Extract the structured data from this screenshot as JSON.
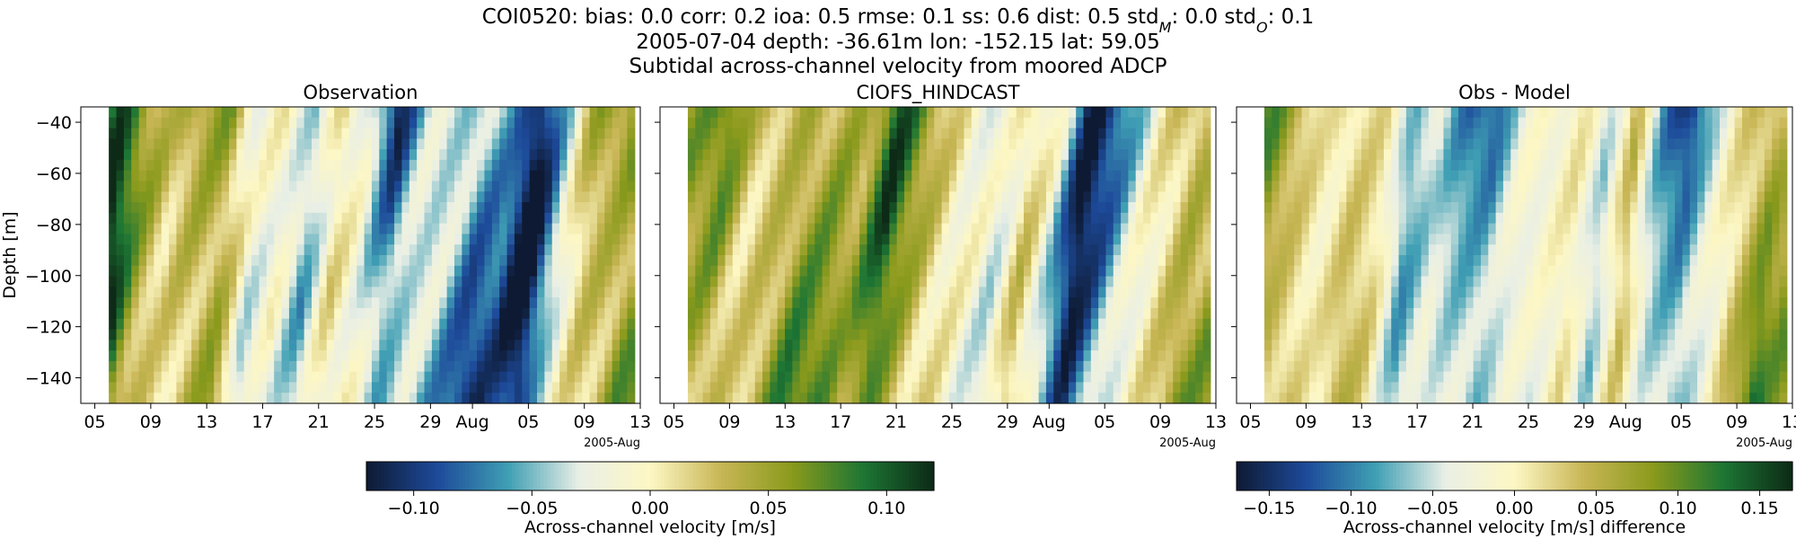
{
  "header": {
    "station": "COI0520",
    "stats": [
      {
        "label": "bias",
        "value": "0.0"
      },
      {
        "label": "corr",
        "value": "0.2"
      },
      {
        "label": "ioa",
        "value": "0.5"
      },
      {
        "label": "rmse",
        "value": "0.1"
      },
      {
        "label": "ss",
        "value": "0.6"
      },
      {
        "label": "dist",
        "value": "0.5"
      },
      {
        "label": "std",
        "sub": "M",
        "value": "0.0"
      },
      {
        "label": "std",
        "sub": "O",
        "value": "0.1"
      }
    ],
    "line2": "2005-07-04 depth: -36.61m lon: -152.15 lat: 59.05",
    "line3": "Subtidal across-channel velocity from moored ADCP"
  },
  "colors": {
    "colormap": [
      "#0e1a33",
      "#1d4a9a",
      "#3f9fb4",
      "#e9efe6",
      "#fdf7c4",
      "#c8b655",
      "#8a9a1c",
      "#1d7634",
      "#0d2a16"
    ]
  },
  "chart_data": [
    {
      "type": "heatmap",
      "title": "Observation",
      "ylabel": "Depth [m]",
      "ylim": [
        -150,
        -34
      ],
      "yticks": [
        -40,
        -60,
        -80,
        -100,
        -120,
        -140
      ],
      "xticks": [
        "05",
        "09",
        "13",
        "17",
        "21",
        "25",
        "29",
        "Aug",
        "05",
        "09",
        "13"
      ],
      "xoffset_label": "2005-Aug",
      "x_range": [
        "2005-07-06",
        "2005-08-12"
      ],
      "depth_bins": 28,
      "time_steps": 70,
      "value_range": [
        -0.12,
        0.12
      ],
      "column_profile": [
        {
          "date": "2005-07-06",
          "value": 0.12
        },
        {
          "date": "2005-07-08",
          "value": 0.05
        },
        {
          "date": "2005-07-10",
          "value": 0.02
        },
        {
          "date": "2005-07-12",
          "value": 0.06
        },
        {
          "date": "2005-07-14",
          "value": 0.09
        },
        {
          "date": "2005-07-16",
          "value": -0.04
        },
        {
          "date": "2005-07-18",
          "value": -0.01
        },
        {
          "date": "2005-07-20",
          "value": -0.05
        },
        {
          "date": "2005-07-22",
          "value": 0.01
        },
        {
          "date": "2005-07-24",
          "value": -0.02
        },
        {
          "date": "2005-07-26",
          "value": -0.12
        },
        {
          "date": "2005-07-28",
          "value": -0.06
        },
        {
          "date": "2005-07-30",
          "value": -0.07
        },
        {
          "date": "2005-08-01",
          "value": -0.1
        },
        {
          "date": "2005-08-03",
          "value": -0.08
        },
        {
          "date": "2005-08-05",
          "value": -0.13
        },
        {
          "date": "2005-08-07",
          "value": -0.04
        },
        {
          "date": "2005-08-09",
          "value": 0.04
        },
        {
          "date": "2005-08-11",
          "value": 0.07
        },
        {
          "date": "2005-08-12",
          "value": 0.1
        }
      ],
      "colorbar": {
        "label": "Across-channel velocity [m/s]",
        "range": [
          -0.12,
          0.12
        ],
        "ticks": [
          "−0.10",
          "−0.05",
          "0.00",
          "0.05",
          "0.10"
        ],
        "tick_values": [
          -0.1,
          -0.05,
          0.0,
          0.05,
          0.1
        ]
      }
    },
    {
      "type": "heatmap",
      "title": "CIOFS_HINDCAST",
      "ylim": [
        -150,
        -34
      ],
      "xticks": [
        "05",
        "09",
        "13",
        "17",
        "21",
        "25",
        "29",
        "Aug",
        "05",
        "09",
        "13"
      ],
      "xoffset_label": "2005-Aug",
      "x_range": [
        "2005-07-06",
        "2005-08-12"
      ],
      "depth_bins": 28,
      "time_steps": 70,
      "value_range": [
        -0.12,
        0.12
      ],
      "column_profile": [
        {
          "date": "2005-07-06",
          "value": 0.05
        },
        {
          "date": "2005-07-08",
          "value": 0.08
        },
        {
          "date": "2005-07-10",
          "value": 0.03
        },
        {
          "date": "2005-07-12",
          "value": 0.06
        },
        {
          "date": "2005-07-14",
          "value": 0.09
        },
        {
          "date": "2005-07-16",
          "value": 0.07
        },
        {
          "date": "2005-07-18",
          "value": 0.04
        },
        {
          "date": "2005-07-20",
          "value": 0.1
        },
        {
          "date": "2005-07-22",
          "value": 0.06
        },
        {
          "date": "2005-07-24",
          "value": 0.02
        },
        {
          "date": "2005-07-26",
          "value": -0.02
        },
        {
          "date": "2005-07-28",
          "value": -0.05
        },
        {
          "date": "2005-07-30",
          "value": 0.03
        },
        {
          "date": "2005-08-01",
          "value": -0.03
        },
        {
          "date": "2005-08-03",
          "value": -0.12
        },
        {
          "date": "2005-08-05",
          "value": -0.08
        },
        {
          "date": "2005-08-07",
          "value": -0.03
        },
        {
          "date": "2005-08-09",
          "value": 0.02
        },
        {
          "date": "2005-08-11",
          "value": 0.08
        },
        {
          "date": "2005-08-12",
          "value": 0.06
        }
      ]
    },
    {
      "type": "heatmap",
      "title": "Obs - Model",
      "ylim": [
        -150,
        -34
      ],
      "xticks": [
        "05",
        "09",
        "13",
        "17",
        "21",
        "25",
        "29",
        "Aug",
        "05",
        "09",
        "13"
      ],
      "xoffset_label": "2005-Aug",
      "x_range": [
        "2005-07-06",
        "2005-08-12"
      ],
      "depth_bins": 28,
      "time_steps": 70,
      "value_range": [
        -0.17,
        0.17
      ],
      "column_profile": [
        {
          "date": "2005-07-06",
          "value": 0.1
        },
        {
          "date": "2005-07-08",
          "value": 0.06
        },
        {
          "date": "2005-07-10",
          "value": 0.0
        },
        {
          "date": "2005-07-12",
          "value": 0.05
        },
        {
          "date": "2005-07-14",
          "value": 0.02
        },
        {
          "date": "2005-07-16",
          "value": -0.08
        },
        {
          "date": "2005-07-18",
          "value": -0.04
        },
        {
          "date": "2005-07-20",
          "value": -0.1
        },
        {
          "date": "2005-07-22",
          "value": -0.14
        },
        {
          "date": "2005-07-24",
          "value": -0.05
        },
        {
          "date": "2005-07-26",
          "value": -0.03
        },
        {
          "date": "2005-07-28",
          "value": 0.01
        },
        {
          "date": "2005-07-30",
          "value": -0.06
        },
        {
          "date": "2005-08-01",
          "value": 0.04
        },
        {
          "date": "2005-08-03",
          "value": -0.08
        },
        {
          "date": "2005-08-05",
          "value": -0.16
        },
        {
          "date": "2005-08-07",
          "value": -0.06
        },
        {
          "date": "2005-08-09",
          "value": 0.05
        },
        {
          "date": "2005-08-11",
          "value": 0.12
        },
        {
          "date": "2005-08-12",
          "value": 0.08
        }
      ],
      "colorbar": {
        "label": "Across-channel velocity [m/s] difference",
        "range": [
          -0.17,
          0.17
        ],
        "ticks": [
          "−0.15",
          "−0.10",
          "−0.05",
          "0.00",
          "0.05",
          "0.10",
          "0.15"
        ],
        "tick_values": [
          -0.15,
          -0.1,
          -0.05,
          0.0,
          0.05,
          0.1,
          0.15
        ]
      }
    }
  ]
}
